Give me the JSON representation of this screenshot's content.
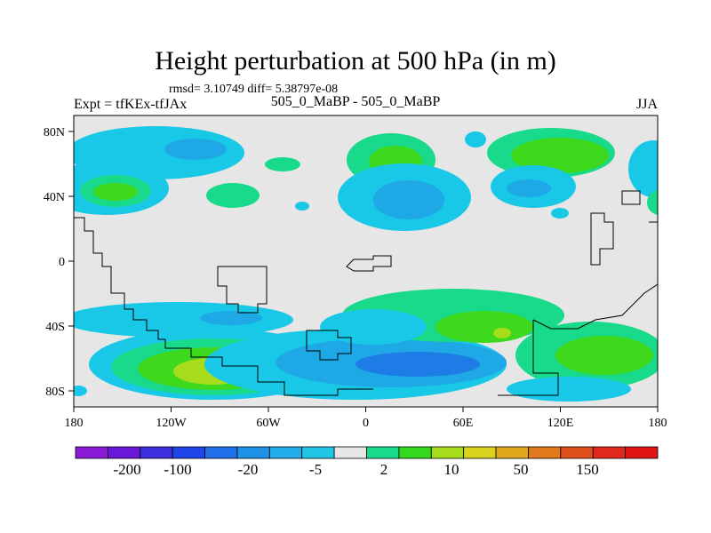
{
  "title": "Height perturbation at 500 hPa (in m)",
  "stats_line": "rmsd= 3.10749 diff= 5.38797e-08",
  "experiment_label": "Expt = tfKEx-tfJAx",
  "center_label": "505_0_MaBP - 505_0_MaBP",
  "season_label": "JJA",
  "map": {
    "projection": "cylindrical equidistant",
    "lon_range": [
      -180,
      180
    ],
    "lat_range": [
      -90,
      90
    ],
    "background_color": "#e6e6e6",
    "x_tick_labels": [
      "180",
      "120W",
      "60W",
      "0",
      "60E",
      "120E",
      "180"
    ],
    "y_tick_labels": [
      "80N",
      "40N",
      "0",
      "40S",
      "80S"
    ]
  },
  "colorbar": {
    "tick_labels": [
      "-200",
      "-100",
      "-20",
      "-5",
      "2",
      "10",
      "50",
      "150"
    ],
    "colors": [
      "#8a1ad8",
      "#6a17d8",
      "#3d2ee0",
      "#1e46e8",
      "#1f6fea",
      "#1f91e6",
      "#23acea",
      "#1fc6e6",
      "#e6e6e6",
      "#18da8a",
      "#34d81c",
      "#a6dc1c",
      "#d8d21c",
      "#e0a91c",
      "#e07a1c",
      "#e0501c",
      "#e0281c",
      "#e01414"
    ]
  },
  "legend_colors": {
    "neg_light": "#18c8e6",
    "neg_mid": "#1fa8e6",
    "neg_dark": "#1e7ce6",
    "pos_light": "#18da8a",
    "pos_mid": "#3ed81c",
    "pos_dark": "#a6dc1c",
    "pos_peak": "#d8d21c"
  }
}
